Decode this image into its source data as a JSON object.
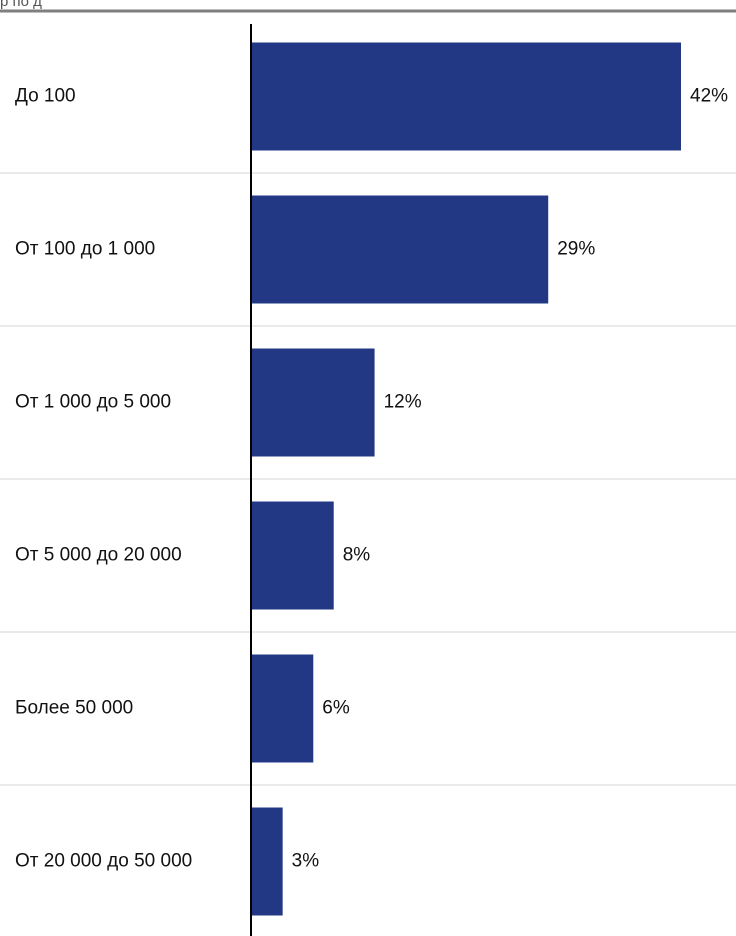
{
  "chart_data": {
    "type": "bar",
    "orientation": "horizontal",
    "header_text": "р по д",
    "categories": [
      "До 100",
      "От 100 до 1 000",
      "От 1 000 до 5 000",
      "От 5 000 до 20 000",
      "Более 50 000",
      "От 20 000 до 50 000"
    ],
    "values": [
      42,
      29,
      12,
      8,
      6,
      3
    ],
    "value_labels": [
      "42%",
      "29%",
      "12%",
      "8%",
      "6%",
      "3%"
    ],
    "value_unit": "%",
    "xlim": [
      0,
      42
    ],
    "grid": false,
    "legend": "none",
    "bar_color": "#223885",
    "separator_color": "#d6d6d6"
  }
}
